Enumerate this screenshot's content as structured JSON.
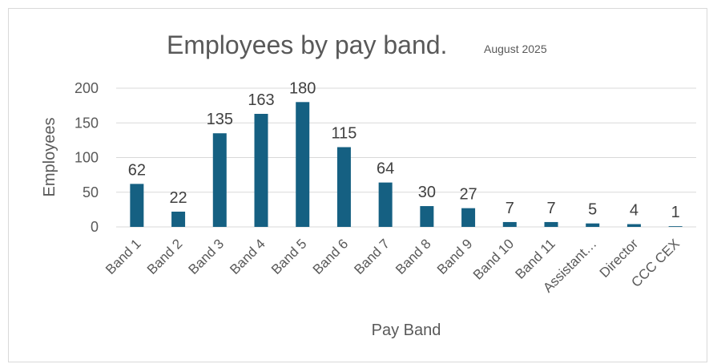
{
  "chart_data": {
    "type": "bar",
    "title": "Employees by pay band.",
    "subtitle": "August 2025",
    "xlabel": "Pay Band",
    "ylabel": "Employees",
    "categories": [
      "Band 1",
      "Band 2",
      "Band 3",
      "Band 4",
      "Band 5",
      "Band 6",
      "Band 7",
      "Band 8",
      "Band 9",
      "Band 10",
      "Band 11",
      "Assistant…",
      "Director",
      "CCC CEX"
    ],
    "values": [
      62,
      22,
      135,
      163,
      180,
      115,
      64,
      30,
      27,
      7,
      7,
      5,
      4,
      1
    ],
    "ylim": [
      0,
      200
    ],
    "yticks": [
      0,
      50,
      100,
      150,
      200
    ],
    "grid": true,
    "legend": "none",
    "colors": {
      "bar": "#156082",
      "grid": "#d9d9d9",
      "text": "#595959"
    }
  }
}
